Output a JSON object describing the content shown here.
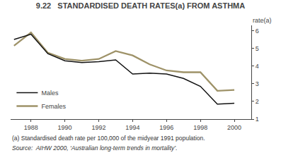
{
  "chart_data": {
    "type": "line",
    "title": "9.22   STANDARDISED DEATH RATES(a) FROM ASTHMA",
    "ylabel": "rate(a)",
    "annotations": [
      "(a) Standardised death rate per 100,000 of the midyear 1991 population.",
      "Source:  AIHW 2000, ‘Australian long-term trends in mortality’."
    ],
    "x": [
      1987,
      1988,
      1989,
      1990,
      1991,
      1992,
      1993,
      1994,
      1995,
      1996,
      1997,
      1998,
      1999,
      2000
    ],
    "series": [
      {
        "name": "Males",
        "color": "#111111",
        "values": [
          5.5,
          5.8,
          4.7,
          4.3,
          4.2,
          4.25,
          4.35,
          3.55,
          3.6,
          3.55,
          3.3,
          2.85,
          1.85,
          1.9
        ]
      },
      {
        "name": "Females",
        "color": "#9e9268",
        "values": [
          5.15,
          5.9,
          4.75,
          4.4,
          4.3,
          4.4,
          4.85,
          4.6,
          4.1,
          3.75,
          3.65,
          3.65,
          2.6,
          2.65
        ]
      }
    ],
    "xlim": [
      1986.8,
      2001.0
    ],
    "xticks": [
      1988,
      1990,
      1992,
      1994,
      1996,
      1998,
      2000
    ],
    "ylim": [
      1.0,
      6.3
    ],
    "yticks": [
      1,
      2,
      3,
      4,
      5,
      6
    ],
    "legend": "lower left",
    "grid": false
  }
}
